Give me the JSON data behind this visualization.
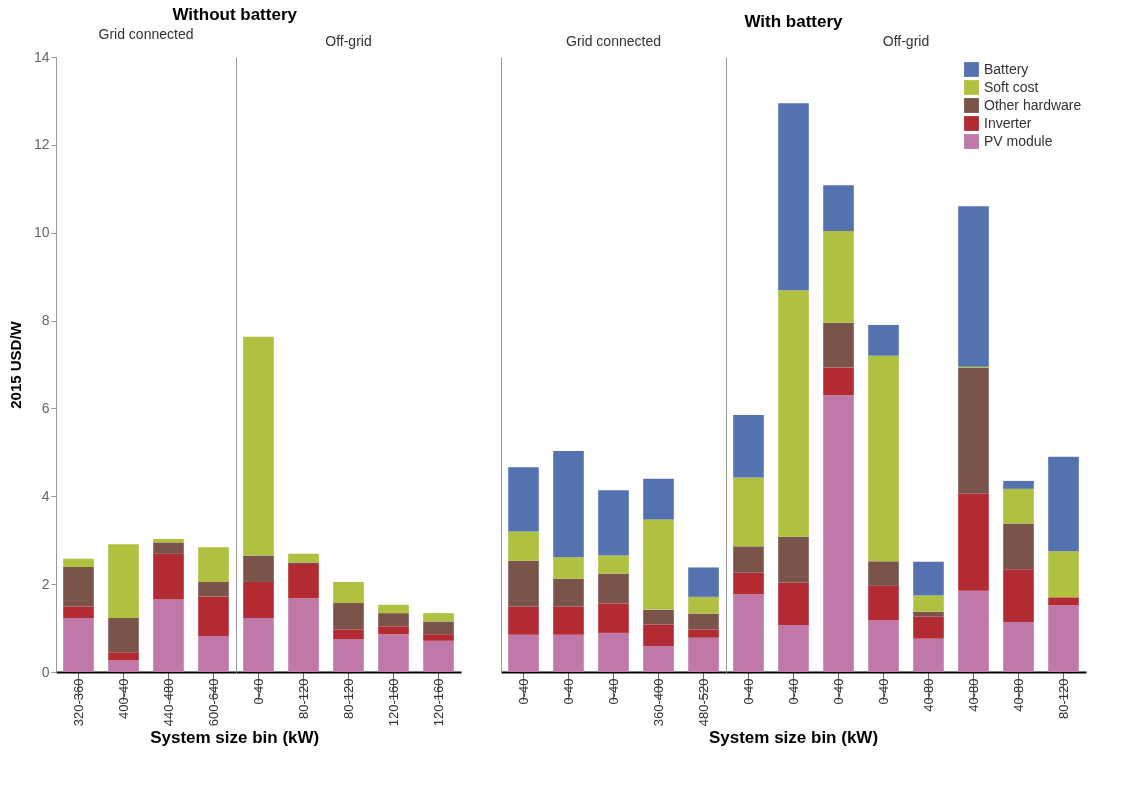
{
  "chart_data": [
    {
      "type": "bar",
      "title": "Without battery",
      "subtitle": "Grid connected",
      "xlabel": "System size bin (kW)",
      "ylabel": "2015 USD/W",
      "stacked": true,
      "ylim": [
        0,
        14
      ],
      "yticks": [
        0,
        2,
        4,
        6,
        8,
        10,
        12,
        14
      ],
      "categories": [
        "320-360",
        "400-40",
        "440-480",
        "600-640"
      ],
      "series": [
        {
          "color": "#c078a8",
          "values": [
            1.23,
            0.26,
            1.65,
            0.82
          ]
        },
        {
          "color": "#b22a32",
          "values": [
            0.26,
            0.19,
            1.04,
            0.9
          ]
        },
        {
          "color": "#7a534a",
          "values": [
            0.9,
            0.78,
            0.26,
            0.33
          ]
        },
        {
          "color": "#b0c040",
          "values": [
            0.19,
            1.68,
            0.08,
            0.79
          ]
        }
      ]
    },
    {
      "type": "bar",
      "subtitle": "Off-grid",
      "stacked": true,
      "ylim": [
        0,
        14
      ],
      "yticks": [
        0,
        2,
        4,
        6,
        8,
        10,
        12,
        14
      ],
      "tick_labels": "x",
      "categories": [
        "0-40",
        "80-120",
        "80-120",
        "120-160",
        "120-160"
      ],
      "series": [
        {
          "color": "#c078a8",
          "values": [
            1.23,
            1.68,
            0.75,
            0.86,
            0.71
          ]
        },
        {
          "color": "#b22a32",
          "values": [
            0.82,
            0.78,
            0.22,
            0.18,
            0.15
          ]
        },
        {
          "color": "#7a534a",
          "values": [
            0.6,
            0.03,
            0.6,
            0.3,
            0.29
          ]
        },
        {
          "color": "#b0c040",
          "values": [
            4.98,
            0.2,
            0.48,
            0.19,
            0.19
          ]
        }
      ]
    },
    {
      "type": "bar",
      "subtitle": "Grid connected",
      "stacked": true,
      "ylim": [
        0,
        14
      ],
      "yticks": [
        0,
        2,
        4,
        6,
        8,
        10,
        12,
        14
      ],
      "tick_labels": "x",
      "categories": [
        "0-40",
        "0-40",
        "0-40",
        "360-400",
        "480-520"
      ],
      "series": [
        {
          "color": "#c078a8",
          "values": [
            0.85,
            0.85,
            0.89,
            0.59,
            0.78
          ]
        },
        {
          "color": "#b22a32",
          "values": [
            0.64,
            0.64,
            0.67,
            0.49,
            0.19
          ]
        },
        {
          "color": "#7a534a",
          "values": [
            1.04,
            0.63,
            0.68,
            0.34,
            0.36
          ]
        },
        {
          "color": "#b0c040",
          "values": [
            0.67,
            0.49,
            0.41,
            2.05,
            0.38
          ]
        },
        {
          "color": "#5572b0",
          "values": [
            1.46,
            2.42,
            1.49,
            0.93,
            0.67
          ]
        }
      ]
    },
    {
      "type": "bar",
      "title": "With battery",
      "subtitle": "Off-grid",
      "xlabel": "System size bin (kW)",
      "stacked": true,
      "ylim": [
        0,
        14
      ],
      "yticks": [
        0,
        2,
        4,
        6,
        8,
        10,
        12,
        14
      ],
      "tick_labels": "x",
      "legend": "top right",
      "categories": [
        "0-40",
        "0-40",
        "0-40",
        "0-40",
        "40-80",
        "40-80",
        "40-80",
        "80-120"
      ],
      "series": [
        {
          "name": "PV module",
          "color": "#c078a8",
          "values": [
            1.77,
            1.07,
            6.3,
            1.18,
            0.76,
            1.85,
            1.14,
            1.52
          ]
        },
        {
          "name": "Inverter",
          "color": "#b22a32",
          "values": [
            0.49,
            0.97,
            0.63,
            0.78,
            0.5,
            2.21,
            1.2,
            0.18
          ]
        },
        {
          "name": "Other hardware",
          "color": "#7a534a",
          "values": [
            0.6,
            1.04,
            1.02,
            0.56,
            0.11,
            2.86,
            1.04,
            null
          ]
        },
        {
          "name": "Soft cost",
          "color": "#b0c040",
          "values": [
            1.57,
            5.61,
            2.09,
            4.68,
            0.37,
            0.03,
            0.79,
            1.05
          ]
        },
        {
          "name": "Battery",
          "color": "#5572b0",
          "values": [
            1.42,
            4.26,
            1.04,
            0.7,
            0.77,
            3.65,
            0.18,
            2.15
          ]
        }
      ]
    }
  ]
}
